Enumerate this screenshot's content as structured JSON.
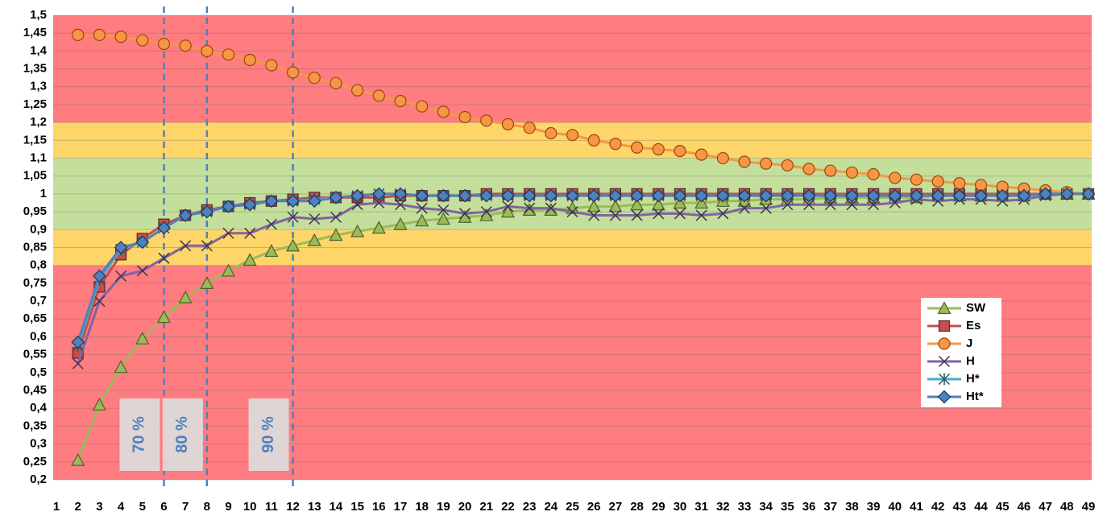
{
  "chart_data": {
    "type": "line",
    "x": [
      2,
      3,
      4,
      5,
      6,
      7,
      8,
      9,
      10,
      11,
      12,
      13,
      14,
      15,
      16,
      17,
      18,
      19,
      20,
      21,
      22,
      23,
      24,
      25,
      26,
      27,
      28,
      29,
      30,
      31,
      32,
      33,
      34,
      35,
      36,
      37,
      38,
      39,
      40,
      41,
      42,
      43,
      44,
      45,
      46,
      47,
      48,
      49
    ],
    "xlim": [
      0.85,
      49.15
    ],
    "xticks": [
      1,
      2,
      3,
      4,
      5,
      6,
      7,
      8,
      9,
      10,
      11,
      12,
      13,
      14,
      15,
      16,
      17,
      18,
      19,
      20,
      21,
      22,
      23,
      24,
      25,
      26,
      27,
      28,
      29,
      30,
      31,
      32,
      33,
      34,
      35,
      36,
      37,
      38,
      39,
      40,
      41,
      42,
      43,
      44,
      45,
      46,
      47,
      48,
      49
    ],
    "ylim": [
      0.2,
      1.5
    ],
    "yticks": [
      {
        "value": 0.2,
        "label": "0,2"
      },
      {
        "value": 0.25,
        "label": "0,25"
      },
      {
        "value": 0.3,
        "label": "0,3"
      },
      {
        "value": 0.35,
        "label": "0,35"
      },
      {
        "value": 0.4,
        "label": "0,4"
      },
      {
        "value": 0.45,
        "label": "0,45"
      },
      {
        "value": 0.5,
        "label": "0,5"
      },
      {
        "value": 0.55,
        "label": "0,55"
      },
      {
        "value": 0.6,
        "label": "0,6"
      },
      {
        "value": 0.65,
        "label": "0,65"
      },
      {
        "value": 0.7,
        "label": "0,7"
      },
      {
        "value": 0.75,
        "label": "0,75"
      },
      {
        "value": 0.8,
        "label": "0,8"
      },
      {
        "value": 0.85,
        "label": "0,85"
      },
      {
        "value": 0.9,
        "label": "0,9"
      },
      {
        "value": 0.95,
        "label": "0,95"
      },
      1,
      {
        "value": 1.05,
        "label": "1,05"
      },
      {
        "value": 1.1,
        "label": "1,1"
      },
      {
        "value": 1.15,
        "label": "1,15"
      },
      {
        "value": 1.2,
        "label": "1,2"
      },
      {
        "value": 1.25,
        "label": "1,25"
      },
      {
        "value": 1.3,
        "label": "1,3"
      },
      {
        "value": 1.35,
        "label": "1,35"
      },
      {
        "value": 1.4,
        "label": "1,4"
      },
      {
        "value": 1.45,
        "label": "1,45"
      },
      {
        "value": 1.5,
        "label": "1,5"
      }
    ],
    "grid": true,
    "bands": [
      {
        "from": 0.2,
        "to": 0.8,
        "color": "#ff7c80"
      },
      {
        "from": 0.8,
        "to": 0.9,
        "color": "#fdd568"
      },
      {
        "from": 0.9,
        "to": 1.1,
        "color": "#c3df9b"
      },
      {
        "from": 1.1,
        "to": 1.2,
        "color": "#fdd568"
      },
      {
        "from": 1.2,
        "to": 1.5,
        "color": "#ff7c80"
      }
    ],
    "vlines": [
      {
        "x": 6,
        "label": "70 %"
      },
      {
        "x": 8,
        "label": "80 %"
      },
      {
        "x": 12,
        "label": "90 %"
      }
    ],
    "legend": "right",
    "series": [
      {
        "name": "SW",
        "color": "#9bbb59",
        "marker": "triangle",
        "marker_edge": "#4e6128",
        "values": [
          0.255,
          0.41,
          0.515,
          0.595,
          0.655,
          0.71,
          0.75,
          0.785,
          0.815,
          0.84,
          0.855,
          0.87,
          0.885,
          0.895,
          0.905,
          0.915,
          0.925,
          0.93,
          0.935,
          0.94,
          0.95,
          0.955,
          0.955,
          0.96,
          0.965,
          0.965,
          0.97,
          0.97,
          0.975,
          0.975,
          0.98,
          0.98,
          0.985,
          0.985,
          0.985,
          0.99,
          0.99,
          0.99,
          0.99,
          0.99,
          0.995,
          0.995,
          0.995,
          0.995,
          0.995,
          1,
          1,
          1
        ]
      },
      {
        "name": "Es",
        "color": "#c0504d",
        "marker": "square",
        "marker_edge": "#632523",
        "values": [
          0.555,
          0.74,
          0.83,
          0.875,
          0.915,
          0.94,
          0.955,
          0.965,
          0.975,
          0.98,
          0.985,
          0.99,
          0.99,
          0.99,
          0.99,
          0.995,
          0.995,
          0.995,
          0.995,
          1,
          1,
          1,
          1,
          1,
          1,
          1,
          1,
          1,
          1,
          1,
          1,
          1,
          1,
          1,
          1,
          1,
          1,
          1,
          1,
          1,
          1,
          1,
          1,
          1,
          1,
          1,
          1,
          1
        ]
      },
      {
        "name": "J",
        "color": "#f79646",
        "marker": "circle",
        "marker_edge": "#984807",
        "values": [
          1.445,
          1.445,
          1.44,
          1.43,
          1.42,
          1.415,
          1.4,
          1.39,
          1.375,
          1.36,
          1.34,
          1.325,
          1.31,
          1.29,
          1.275,
          1.26,
          1.245,
          1.23,
          1.215,
          1.205,
          1.195,
          1.185,
          1.17,
          1.165,
          1.15,
          1.14,
          1.13,
          1.125,
          1.12,
          1.11,
          1.1,
          1.09,
          1.085,
          1.08,
          1.07,
          1.065,
          1.06,
          1.055,
          1.045,
          1.04,
          1.035,
          1.03,
          1.025,
          1.02,
          1.015,
          1.01,
          1.005,
          1
        ]
      },
      {
        "name": "H",
        "color": "#8064a2",
        "marker": "x",
        "marker_edge": "#3f3151",
        "values": [
          0.525,
          0.7,
          0.77,
          0.785,
          0.82,
          0.855,
          0.855,
          0.89,
          0.89,
          0.915,
          0.935,
          0.93,
          0.935,
          0.97,
          0.975,
          0.97,
          0.96,
          0.955,
          0.945,
          0.95,
          0.965,
          0.96,
          0.96,
          0.95,
          0.94,
          0.94,
          0.94,
          0.945,
          0.945,
          0.94,
          0.945,
          0.96,
          0.96,
          0.97,
          0.97,
          0.97,
          0.97,
          0.97,
          0.975,
          0.985,
          0.98,
          0.985,
          0.985,
          0.98,
          0.985,
          0.995,
          1,
          1
        ]
      },
      {
        "name": "H*",
        "color": "#4bacc6",
        "marker": "asterisk",
        "marker_edge": "#215968",
        "values": [
          0.575,
          0.76,
          0.845,
          0.865,
          0.905,
          0.94,
          0.95,
          0.965,
          0.97,
          0.98,
          0.98,
          0.985,
          0.99,
          0.995,
          1,
          1,
          0.995,
          0.995,
          0.995,
          0.995,
          0.995,
          0.995,
          0.995,
          0.995,
          0.995,
          0.995,
          0.995,
          0.995,
          0.995,
          0.995,
          0.995,
          0.995,
          0.995,
          0.995,
          0.995,
          0.995,
          0.995,
          0.995,
          0.995,
          0.995,
          0.995,
          0.995,
          0.995,
          0.995,
          0.995,
          1,
          1,
          1
        ]
      },
      {
        "name": "Ht*",
        "color": "#4f81bd",
        "marker": "diamond",
        "marker_edge": "#17375e",
        "values": [
          0.585,
          0.77,
          0.85,
          0.865,
          0.905,
          0.94,
          0.95,
          0.965,
          0.97,
          0.98,
          0.98,
          0.98,
          0.99,
          0.995,
          1,
          1,
          0.995,
          0.995,
          0.995,
          0.995,
          0.995,
          0.995,
          0.995,
          0.995,
          0.995,
          0.995,
          0.995,
          0.995,
          0.995,
          0.995,
          0.995,
          0.995,
          0.995,
          0.995,
          0.995,
          0.995,
          0.995,
          0.995,
          0.995,
          0.995,
          0.995,
          0.995,
          0.995,
          0.995,
          0.995,
          1,
          1,
          1
        ]
      }
    ]
  }
}
